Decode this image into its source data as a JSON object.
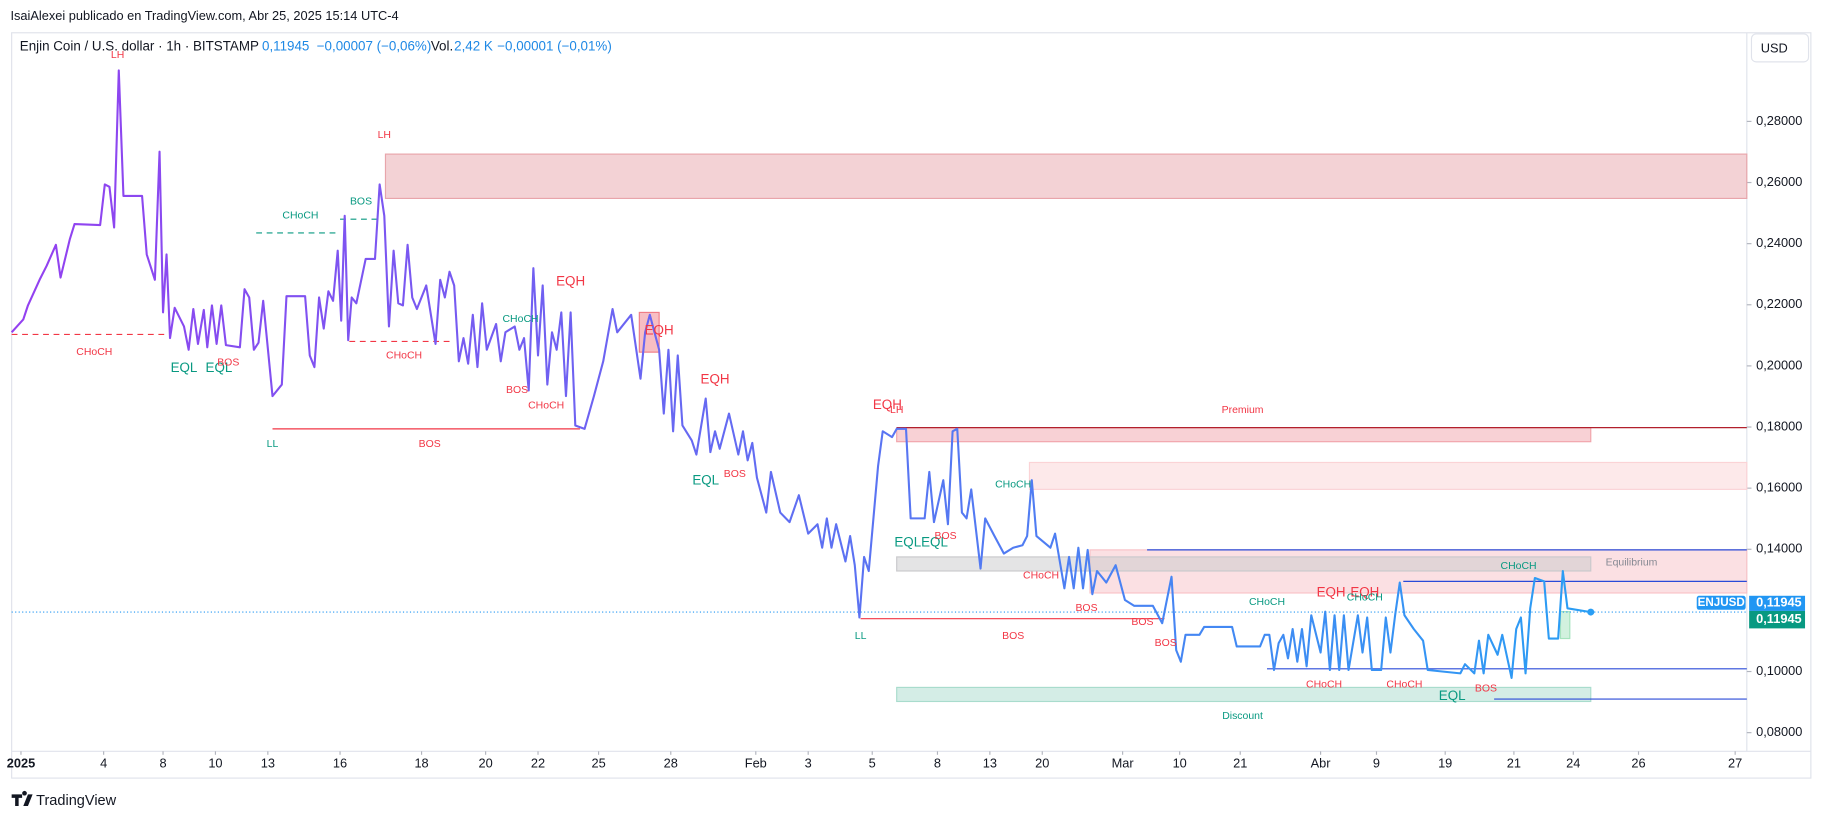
{
  "header": {
    "publisher": "IsaiAlexei publicado en TradingView.com, Abr 25, 2025 15:14 UTC-4",
    "symbol": "Enjin Coin / U.S. dollar · 1h · BITSTAMP",
    "price": "0,11945",
    "change": "−0,00007 (−0,06%)",
    "volume_label": "Vol.",
    "volume": "2,42 K",
    "volume_change": "−0,00001 (−0,01%)",
    "currency": "USD"
  },
  "footer": {
    "brand": "TradingView"
  },
  "chart_data": {
    "type": "line",
    "xlim": [
      10,
      1500
    ],
    "ylim": [
      0.0739,
      0.309
    ],
    "yticks": [
      {
        "value": 0.28,
        "label": "0,28000"
      },
      {
        "value": 0.26,
        "label": "0,26000"
      },
      {
        "value": 0.24,
        "label": "0,24000"
      },
      {
        "value": 0.22,
        "label": "0,22000"
      },
      {
        "value": 0.2,
        "label": "0,20000"
      },
      {
        "value": 0.18,
        "label": "0,18000"
      },
      {
        "value": 0.16,
        "label": "0,16000"
      },
      {
        "value": 0.14,
        "label": "0,14000"
      },
      {
        "value": 0.1,
        "label": "0,10000"
      },
      {
        "value": 0.08,
        "label": "0,08000"
      }
    ],
    "xticks": [
      {
        "value": 18,
        "label": "2025"
      },
      {
        "value": 89,
        "label": "4"
      },
      {
        "value": 140,
        "label": "8"
      },
      {
        "value": 185,
        "label": "10"
      },
      {
        "value": 230,
        "label": "13"
      },
      {
        "value": 292,
        "label": "16"
      },
      {
        "value": 362,
        "label": "18"
      },
      {
        "value": 417,
        "label": "20"
      },
      {
        "value": 462,
        "label": "22"
      },
      {
        "value": 514,
        "label": "25"
      },
      {
        "value": 576,
        "label": "28"
      },
      {
        "value": 649,
        "label": "Feb"
      },
      {
        "value": 694,
        "label": "3"
      },
      {
        "value": 749,
        "label": "5"
      },
      {
        "value": 805,
        "label": "8"
      },
      {
        "value": 850,
        "label": "13"
      },
      {
        "value": 895,
        "label": "20"
      },
      {
        "value": 964,
        "label": "Mar"
      },
      {
        "value": 1013,
        "label": "10"
      },
      {
        "value": 1065,
        "label": "21"
      },
      {
        "value": 1134,
        "label": "Abr"
      },
      {
        "value": 1182,
        "label": "9"
      },
      {
        "value": 1241,
        "label": "19"
      },
      {
        "value": 1300,
        "label": "21"
      },
      {
        "value": 1351,
        "label": "24"
      },
      {
        "value": 1407,
        "label": "26"
      },
      {
        "value": 1490,
        "label": "27"
      }
    ],
    "series": [
      {
        "name": "ENJUSD",
        "colors": [
          "#9440f0",
          "#2a9ef4"
        ],
        "x": [
          10,
          20,
          24,
          34,
          40,
          48,
          52,
          60,
          64,
          86,
          90,
          94,
          98,
          102,
          106,
          122,
          126,
          133,
          137,
          140,
          143,
          146,
          150,
          158,
          162,
          166,
          170,
          175,
          178,
          182,
          186,
          190,
          194,
          206,
          210,
          214,
          218,
          222,
          226,
          234,
          242,
          246,
          262,
          266,
          270,
          274,
          278,
          282,
          286,
          290,
          293,
          296,
          299,
          302,
          306,
          314,
          322,
          326,
          330,
          334,
          338,
          342,
          346,
          350,
          354,
          358,
          366,
          374,
          378,
          382,
          386,
          390,
          394,
          398,
          402,
          406,
          410,
          414,
          418,
          426,
          430,
          434,
          442,
          446,
          450,
          454,
          458,
          462,
          466,
          470,
          474,
          478,
          482,
          486,
          490,
          494,
          502,
          510,
          518,
          526,
          530,
          542,
          550,
          554,
          558,
          566,
          570,
          574,
          578,
          582,
          586,
          594,
          598,
          606,
          610,
          614,
          618,
          626,
          634,
          638,
          642,
          646,
          650,
          658,
          662,
          670,
          678,
          686,
          694,
          702,
          706,
          710,
          714,
          718,
          726,
          730,
          734,
          738,
          742,
          746,
          754,
          758,
          766,
          770,
          778,
          782,
          794,
          798,
          802,
          810,
          814,
          818,
          822,
          826,
          830,
          834,
          842,
          846,
          854,
          862,
          870,
          878,
          882,
          886,
          890,
          902,
          906,
          914,
          918,
          922,
          926,
          930,
          934,
          938,
          942,
          950,
          958,
          966,
          974,
          990,
          998,
          1006,
          1010,
          1014,
          1018,
          1030,
          1034,
          1058,
          1062,
          1082,
          1086,
          1090,
          1094,
          1098,
          1102,
          1106,
          1110,
          1114,
          1118,
          1122,
          1126,
          1134,
          1138,
          1142,
          1146,
          1150,
          1154,
          1158,
          1166,
          1170,
          1174,
          1178,
          1186,
          1190,
          1194,
          1198,
          1202,
          1206,
          1214,
          1222,
          1226,
          1254,
          1258,
          1266,
          1270,
          1274,
          1278,
          1286,
          1290,
          1298,
          1302,
          1306,
          1310,
          1314,
          1318,
          1326,
          1330,
          1338,
          1342,
          1346,
          1366
        ],
        "values": [
          0.211,
          0.2152,
          0.2198,
          0.2282,
          0.2327,
          0.2396,
          0.2289,
          0.2415,
          0.2464,
          0.2461,
          0.2594,
          0.2586,
          0.2453,
          0.2967,
          0.2556,
          0.2556,
          0.2365,
          0.2282,
          0.2701,
          0.2175,
          0.2365,
          0.2091,
          0.219,
          0.2129,
          0.2053,
          0.2186,
          0.2072,
          0.2183,
          0.2061,
          0.2198,
          0.2072,
          0.2198,
          0.2068,
          0.2061,
          0.2251,
          0.2224,
          0.2053,
          0.2076,
          0.2213,
          0.1901,
          0.1939,
          0.2228,
          0.2228,
          0.2034,
          0.1996,
          0.2224,
          0.2122,
          0.2244,
          0.2213,
          0.2377,
          0.2148,
          0.2491,
          0.2084,
          0.2224,
          0.2205,
          0.235,
          0.235,
          0.2594,
          0.2491,
          0.2129,
          0.2377,
          0.2205,
          0.2198,
          0.2396,
          0.2224,
          0.2186,
          0.2263,
          0.2072,
          0.2282,
          0.2224,
          0.2308,
          0.2263,
          0.2015,
          0.2091,
          0.2007,
          0.2167,
          0.1996,
          0.2205,
          0.2053,
          0.2137,
          0.2015,
          0.211,
          0.2129,
          0.2053,
          0.2091,
          0.192,
          0.232,
          0.2034,
          0.2263,
          0.1939,
          0.211,
          0.2053,
          0.2175,
          0.1901,
          0.2175,
          0.1805,
          0.1794,
          0.1901,
          0.2015,
          0.2186,
          0.211,
          0.2167,
          0.1958,
          0.211,
          0.2167,
          0.2053,
          0.1844,
          0.2053,
          0.1786,
          0.2034,
          0.1805,
          0.1756,
          0.171,
          0.1893,
          0.1718,
          0.1786,
          0.1729,
          0.1844,
          0.171,
          0.1786,
          0.1691,
          0.1748,
          0.1634,
          0.152,
          0.1653,
          0.152,
          0.1489,
          0.1577,
          0.1451,
          0.1482,
          0.1405,
          0.1501,
          0.1405,
          0.1482,
          0.136,
          0.1443,
          0.1348,
          0.1177,
          0.1375,
          0.1329,
          0.1672,
          0.1786,
          0.1767,
          0.1794,
          0.1794,
          0.1501,
          0.1501,
          0.1653,
          0.1489,
          0.1626,
          0.1482,
          0.1786,
          0.1794,
          0.152,
          0.1501,
          0.1596,
          0.1337,
          0.1501,
          0.1443,
          0.1386,
          0.1405,
          0.1413,
          0.1443,
          0.1626,
          0.1443,
          0.1405,
          0.1451,
          0.1272,
          0.1375,
          0.1272,
          0.1405,
          0.1272,
          0.1398,
          0.1253,
          0.1329,
          0.1291,
          0.1348,
          0.1234,
          0.1215,
          0.1215,
          0.1158,
          0.131,
          0.107,
          0.1032,
          0.112,
          0.112,
          0.1146,
          0.1146,
          0.1082,
          0.1082,
          0.112,
          0.112,
          0.1005,
          0.1093,
          0.112,
          0.1043,
          0.1139,
          0.1032,
          0.1139,
          0.1017,
          0.1184,
          0.1062,
          0.1196,
          0.1005,
          0.1184,
          0.1005,
          0.1184,
          0.1005,
          0.1184,
          0.1062,
          0.1177,
          0.1005,
          0.1005,
          0.1177,
          0.1062,
          0.1184,
          0.1291,
          0.1184,
          0.1139,
          0.1101,
          0.1005,
          0.0994,
          0.1024,
          0.0994,
          0.1101,
          0.0994,
          0.112,
          0.1055,
          0.112,
          0.0979,
          0.1139,
          0.1177,
          0.0994,
          0.1207,
          0.1306,
          0.1295,
          0.1108,
          0.1108,
          0.1329,
          0.1207,
          0.11945
        ]
      }
    ],
    "last_price": {
      "value": 0.11945,
      "label": "0,11945"
    },
    "zones": [
      {
        "x0": 331,
        "x1": 1500,
        "y0": 0.2548,
        "y1": 0.2693,
        "color": "#e8a5ab"
      },
      {
        "x0": 549,
        "x1": 566,
        "y0": 0.2045,
        "y1": 0.2175,
        "color": "#ef7d87"
      },
      {
        "x0": 770,
        "x1": 1366,
        "y0": 0.1752,
        "y1": 0.1798,
        "color": "#f1a4ab"
      },
      {
        "x0": 884,
        "x1": 1500,
        "y0": 0.1596,
        "y1": 0.1684,
        "color": "#fbd3d6"
      },
      {
        "x0": 936,
        "x1": 1500,
        "y0": 0.1257,
        "y1": 0.1398,
        "color": "#f8c2c7"
      },
      {
        "x0": 770,
        "x1": 1366,
        "y0": 0.1329,
        "y1": 0.1375,
        "color": "#c9c9cc"
      },
      {
        "x0": 770,
        "x1": 1366,
        "y0": 0.0902,
        "y1": 0.0948,
        "color": "#a9dccd"
      },
      {
        "x0": 1340,
        "x1": 1348,
        "y0": 0.1108,
        "y1": 0.1196,
        "color": "#a6e3bd"
      }
    ],
    "levels": [
      {
        "x0": 10,
        "x1": 143,
        "y": 0.2103,
        "color": "#f23645",
        "style": "dashed"
      },
      {
        "x0": 220,
        "x1": 290,
        "y": 0.2435,
        "color": "#089981",
        "style": "dashed"
      },
      {
        "x0": 292,
        "x1": 326,
        "y": 0.248,
        "color": "#089981",
        "style": "dashed"
      },
      {
        "x0": 300,
        "x1": 390,
        "y": 0.208,
        "color": "#f23645",
        "style": "dashed"
      },
      {
        "x0": 234,
        "x1": 498,
        "y": 0.1794,
        "color": "#f23645",
        "style": "solid"
      },
      {
        "x0": 770,
        "x1": 1500,
        "y": 0.1798,
        "color": "#b2202c",
        "style": "solid"
      },
      {
        "x0": 739,
        "x1": 1000,
        "y": 0.1173,
        "color": "#f23645",
        "style": "solid"
      },
      {
        "x0": 985,
        "x1": 1500,
        "y": 0.1398,
        "color": "#2a4ad8",
        "style": "solid"
      },
      {
        "x0": 1205,
        "x1": 1500,
        "y": 0.1295,
        "color": "#2a4ad8",
        "style": "solid"
      },
      {
        "x0": 1088,
        "x1": 1500,
        "y": 0.1009,
        "color": "#2a4ad8",
        "style": "solid"
      },
      {
        "x0": 1283,
        "x1": 1500,
        "y": 0.091,
        "color": "#2a4ad8",
        "style": "solid"
      }
    ],
    "annotations": [
      {
        "text": "LH",
        "x": 101,
        "y": 0.3017,
        "color": "#f23645"
      },
      {
        "text": "LH",
        "x": 330,
        "y": 0.2754,
        "color": "#f23645"
      },
      {
        "text": "CHoCH",
        "x": 258,
        "y": 0.2491,
        "color": "#089981"
      },
      {
        "text": "BOS",
        "x": 310,
        "y": 0.2537,
        "color": "#089981"
      },
      {
        "text": "CHoCH",
        "x": 81,
        "y": 0.2045,
        "color": "#f23645"
      },
      {
        "text": "EQL",
        "x": 158,
        "y": 0.1992,
        "color": "#089981"
      },
      {
        "text": "EQL",
        "x": 188,
        "y": 0.1992,
        "color": "#089981"
      },
      {
        "text": "BOS",
        "x": 196,
        "y": 0.2011,
        "color": "#f23645"
      },
      {
        "text": "LL",
        "x": 234,
        "y": 0.1744,
        "color": "#089981"
      },
      {
        "text": "BOS",
        "x": 369,
        "y": 0.1744,
        "color": "#f23645"
      },
      {
        "text": "CHoCH",
        "x": 347,
        "y": 0.2034,
        "color": "#f23645"
      },
      {
        "text": "EQH",
        "x": 490,
        "y": 0.2274,
        "color": "#f23645"
      },
      {
        "text": "CHoCH",
        "x": 447,
        "y": 0.2152,
        "color": "#089981"
      },
      {
        "text": "EQH",
        "x": 566,
        "y": 0.2114,
        "color": "#f23645"
      },
      {
        "text": "BOS",
        "x": 444,
        "y": 0.192,
        "color": "#f23645"
      },
      {
        "text": "CHoCH",
        "x": 469,
        "y": 0.187,
        "color": "#f23645"
      },
      {
        "text": "EQH",
        "x": 614,
        "y": 0.1954,
        "color": "#f23645"
      },
      {
        "text": "EQL",
        "x": 606,
        "y": 0.1623,
        "color": "#089981"
      },
      {
        "text": "BOS",
        "x": 631,
        "y": 0.1645,
        "color": "#f23645"
      },
      {
        "text": "EQH",
        "x": 762,
        "y": 0.187,
        "color": "#f23645"
      },
      {
        "text": "LH",
        "x": 770,
        "y": 0.1855,
        "color": "#f23645"
      },
      {
        "text": "EQLEQL",
        "x": 791,
        "y": 0.1421,
        "color": "#089981"
      },
      {
        "text": "BOS",
        "x": 812,
        "y": 0.1443,
        "color": "#f23645"
      },
      {
        "text": "CHoCH",
        "x": 870,
        "y": 0.1611,
        "color": "#089981"
      },
      {
        "text": "CHoCH",
        "x": 894,
        "y": 0.1314,
        "color": "#f23645"
      },
      {
        "text": "BOS",
        "x": 933,
        "y": 0.1207,
        "color": "#f23645"
      },
      {
        "text": "BOS",
        "x": 981,
        "y": 0.1161,
        "color": "#f23645"
      },
      {
        "text": "BOS",
        "x": 1001,
        "y": 0.1093,
        "color": "#f23645"
      },
      {
        "text": "LL",
        "x": 739,
        "y": 0.1116,
        "color": "#089981"
      },
      {
        "text": "BOS",
        "x": 870,
        "y": 0.1116,
        "color": "#f23645"
      },
      {
        "text": "CHoCH",
        "x": 1088,
        "y": 0.1226,
        "color": "#089981"
      },
      {
        "text": "EQH",
        "x": 1143,
        "y": 0.1257,
        "color": "#f23645"
      },
      {
        "text": "EQH",
        "x": 1172,
        "y": 0.1257,
        "color": "#f23645"
      },
      {
        "text": "CHoCH",
        "x": 1172,
        "y": 0.1241,
        "color": "#089981"
      },
      {
        "text": "CHoCH",
        "x": 1304,
        "y": 0.1344,
        "color": "#089981"
      },
      {
        "text": "CHoCH",
        "x": 1137,
        "y": 0.0956,
        "color": "#f23645"
      },
      {
        "text": "CHoCH",
        "x": 1206,
        "y": 0.0956,
        "color": "#f23645"
      },
      {
        "text": "EQL",
        "x": 1247,
        "y": 0.0918,
        "color": "#089981"
      },
      {
        "text": "BOS",
        "x": 1276,
        "y": 0.0944,
        "color": "#f23645"
      },
      {
        "text": "Premium",
        "x": 1067,
        "y": 0.1855,
        "color": "#f23645"
      },
      {
        "text": "Equilibrium",
        "x": 1401,
        "y": 0.1356,
        "color": "#868993"
      },
      {
        "text": "Discount",
        "x": 1067,
        "y": 0.0853,
        "color": "#089981"
      }
    ]
  }
}
